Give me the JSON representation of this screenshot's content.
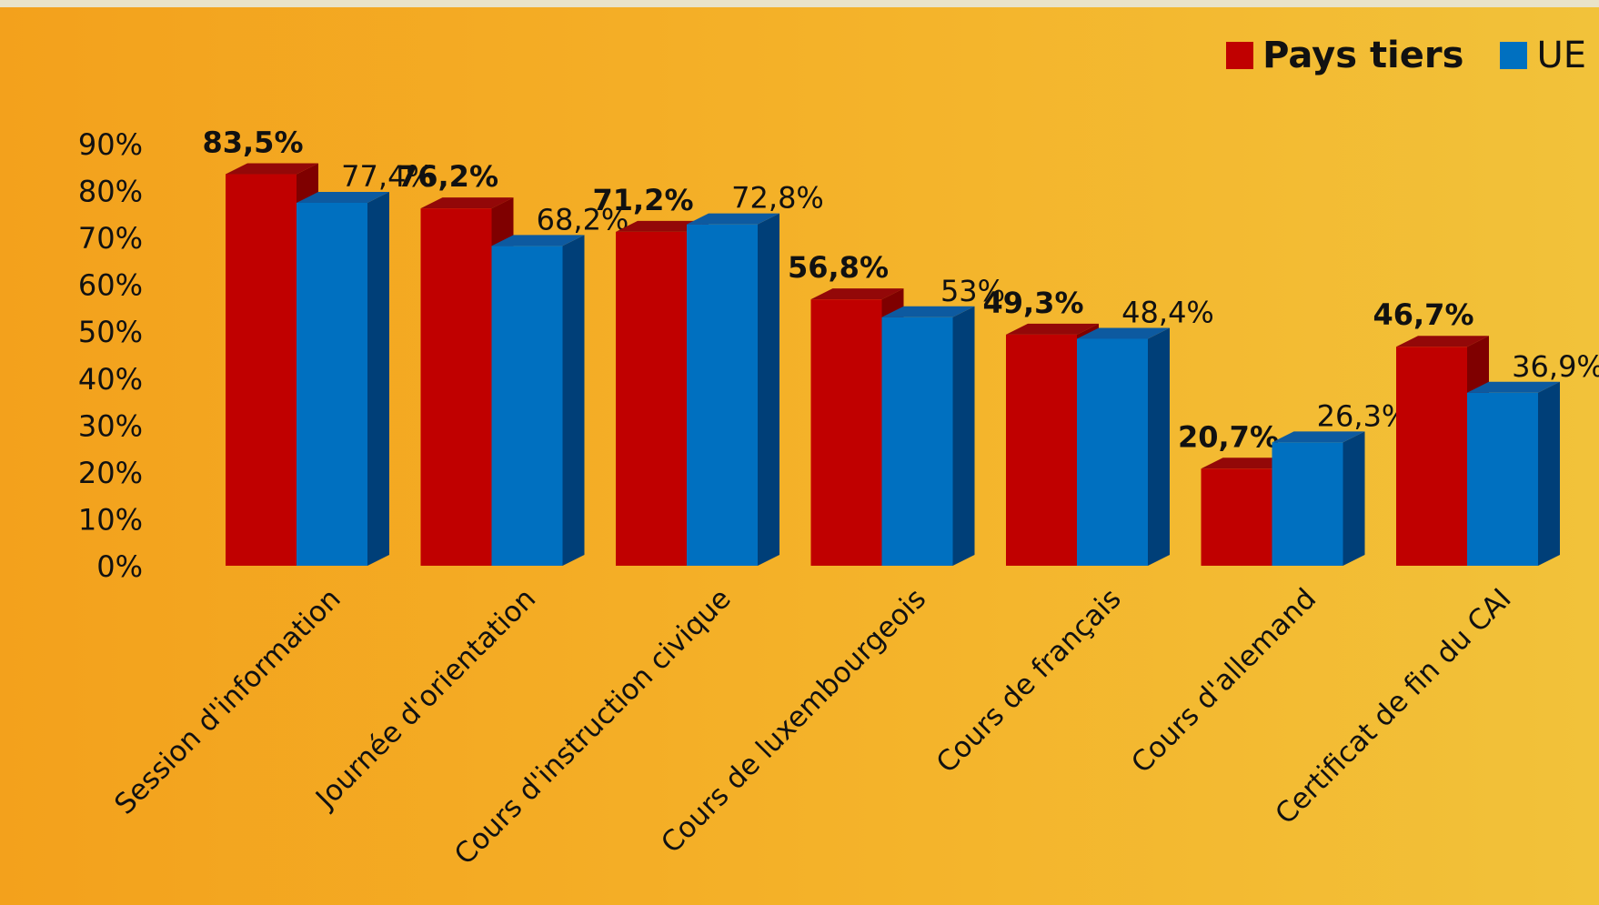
{
  "legend": {
    "series1": "Pays tiers",
    "series2": "UE"
  },
  "colors": {
    "series1": "#c00000",
    "series1_side": "#7f0000",
    "series1_top": "#930808",
    "series2": "#0070c0",
    "series2_side": "#003f78",
    "series2_top": "#0d5aa0"
  },
  "chart_data": {
    "type": "bar",
    "categories": [
      "Session d'information",
      "Journée d'orientation",
      "Cours d'instruction civique",
      "Cours de luxembourgeois",
      "Cours de français",
      "Cours d'allemand",
      "Certificat de fin du CAI"
    ],
    "series": [
      {
        "name": "Pays tiers",
        "values": [
          83.5,
          76.2,
          71.2,
          56.8,
          49.3,
          20.7,
          46.7
        ],
        "labels": [
          "83,5%",
          "76,2%",
          "71,2%",
          "56,8%",
          "49,3%",
          "20,7%",
          "46,7%"
        ]
      },
      {
        "name": "UE",
        "values": [
          77.4,
          68.2,
          72.8,
          53,
          48.4,
          26.3,
          36.9
        ],
        "labels": [
          "77,4%",
          "68,2%",
          "72,8%",
          "53%",
          "48,4%",
          "26,3%",
          "36,9%"
        ]
      }
    ],
    "ylim": [
      0,
      90
    ],
    "yticks": [
      "0%",
      "10%",
      "20%",
      "30%",
      "40%",
      "50%",
      "60%",
      "70%",
      "80%",
      "90%"
    ],
    "legend_position": "top-right",
    "grid": false
  }
}
